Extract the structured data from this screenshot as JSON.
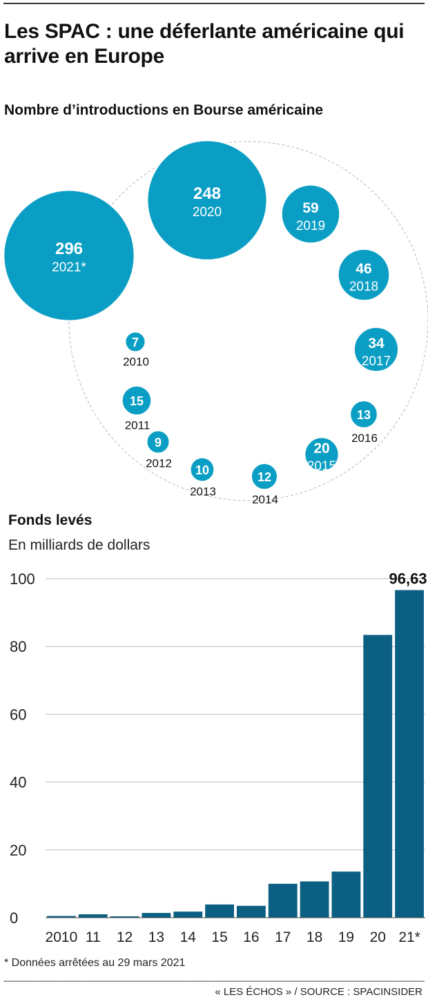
{
  "title": "Les SPAC : une déferlante américaine qui arrive en Europe",
  "colors": {
    "bubble": "#0b9ec4",
    "bar": "#0b5f82",
    "grid": "#bbbbbb"
  },
  "bubbles": {
    "subtitle": "Nombre d’introductions en Bourse américaine",
    "items": [
      {
        "value": 7,
        "label": "2010"
      },
      {
        "value": 15,
        "label": "2011"
      },
      {
        "value": 9,
        "label": "2012"
      },
      {
        "value": 10,
        "label": "2013"
      },
      {
        "value": 12,
        "label": "2014"
      },
      {
        "value": 20,
        "label": "2015"
      },
      {
        "value": 13,
        "label": "2016"
      },
      {
        "value": 34,
        "label": "2017"
      },
      {
        "value": 46,
        "label": "2018"
      },
      {
        "value": 59,
        "label": "2019"
      },
      {
        "value": 248,
        "label": "2020"
      },
      {
        "value": 296,
        "label": "2021*"
      }
    ]
  },
  "funds": {
    "title": "Fonds levés",
    "unit": "En milliards de dollars"
  },
  "chart_data": {
    "type": "bar",
    "title": "Fonds levés",
    "ylabel": "En milliards de dollars",
    "categories": [
      "2010",
      "11",
      "12",
      "13",
      "14",
      "15",
      "16",
      "17",
      "18",
      "19",
      "20",
      "21*"
    ],
    "values": [
      0.5,
      1.0,
      0.4,
      1.4,
      1.8,
      3.9,
      3.5,
      10.0,
      10.7,
      13.6,
      83.4,
      96.63
    ],
    "ylim": [
      0,
      100
    ],
    "yticks": [
      0,
      20,
      40,
      60,
      80,
      100
    ],
    "value_label": "96,63",
    "grid": true
  },
  "footnote": "* Données arrêtées au 29 mars 2021",
  "credit": "« LES ÉCHOS » / SOURCE : SPACINSIDER"
}
